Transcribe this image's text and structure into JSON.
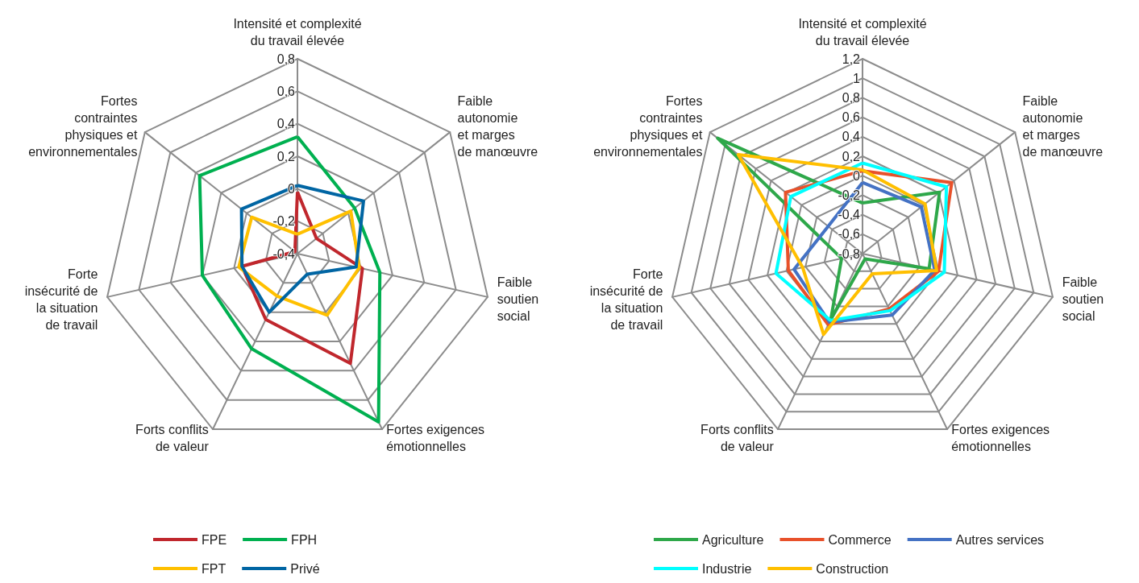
{
  "chart_data": [
    {
      "type": "radar",
      "categories": [
        "Intensité et complexité\ndu travail élevée",
        "Faible\nautonomie\net marges\nde manœuvre",
        "Faible\nsoutien\nsocial",
        "Fortes exigences\némotionnelles",
        "Forts conflits\nde valeur",
        "Forte\ninsécurité de\nla situation\nde travail",
        "Fortes\ncontraintes\nphysiques et\nenvironnementales"
      ],
      "series": [
        {
          "name": "FPE",
          "color": "#c0272d",
          "values": [
            -0.02,
            -0.25,
            0.01,
            0.35,
            0.05,
            -0.05,
            -0.38
          ]
        },
        {
          "name": "FPH",
          "color": "#00b050",
          "values": [
            0.32,
            0.05,
            0.12,
            0.75,
            0.25,
            0.2,
            0.37
          ]
        },
        {
          "name": "FPT",
          "color": "#ffc000",
          "values": [
            -0.28,
            0.02,
            -0.01,
            0.02,
            -0.11,
            -0.03,
            -0.04
          ]
        },
        {
          "name": "Privé",
          "color": "#0065a3",
          "values": [
            0.02,
            0.12,
            -0.03,
            -0.26,
            0.0,
            -0.05,
            0.04
          ]
        }
      ],
      "ylim": [
        -0.4,
        0.8
      ],
      "yticks": [
        {
          "value": -0.4,
          "label": "-0,4"
        },
        {
          "value": -0.2,
          "label": "-0,2"
        },
        {
          "value": 0,
          "label": "0"
        },
        {
          "value": 0.2,
          "label": "0,2"
        },
        {
          "value": 0.4,
          "label": "0,4"
        },
        {
          "value": 0.6,
          "label": "0,6"
        },
        {
          "value": 0.8,
          "label": "0,8"
        }
      ],
      "grid": true,
      "legend": "bottom"
    },
    {
      "type": "radar",
      "categories": [
        "Intensité et complexité\ndu travail élevée",
        "Faible\nautonomie\net marges\nde manœuvre",
        "Faible\nsoutien\nsocial",
        "Fortes exigences\némotionnelles",
        "Forts conflits\nde valeur",
        "Forte\ninsécurité de\nla situation\nde travail",
        "Fortes\ncontraintes\nphysiques et\nenvironnementales"
      ],
      "series": [
        {
          "name": "Agriculture",
          "color": "#2ea84a",
          "values": [
            -0.28,
            0.21,
            -0.1,
            -0.74,
            -0.05,
            -0.58,
            1.1
          ]
        },
        {
          "name": "Commerce",
          "color": "#e8512a",
          "values": [
            0.05,
            0.37,
            0.0,
            -0.17,
            0.01,
            -0.02,
            0.21
          ]
        },
        {
          "name": "Autres services",
          "color": "#4472c4",
          "values": [
            -0.07,
            -0.03,
            -0.04,
            -0.1,
            -0.02,
            -0.08,
            -0.35
          ]
        },
        {
          "name": "Industrie",
          "color": "#00ffff",
          "values": [
            0.13,
            0.3,
            0.06,
            -0.15,
            -0.04,
            0.11,
            0.14
          ]
        },
        {
          "name": "Construction",
          "color": "#ffbf00",
          "values": [
            0.06,
            0.02,
            -0.02,
            -0.57,
            0.12,
            -0.17,
            0.83
          ]
        }
      ],
      "ylim": [
        -0.8,
        1.2
      ],
      "yticks": [
        {
          "value": -0.8,
          "label": "-0,8"
        },
        {
          "value": -0.6,
          "label": "-0,6"
        },
        {
          "value": -0.4,
          "label": "-0,4"
        },
        {
          "value": -0.2,
          "label": "-0,2"
        },
        {
          "value": 0,
          "label": "0"
        },
        {
          "value": 0.2,
          "label": "0,2"
        },
        {
          "value": 0.4,
          "label": "0,4"
        },
        {
          "value": 0.6,
          "label": "0,6"
        },
        {
          "value": 0.8,
          "label": "0,8"
        },
        {
          "value": 1,
          "label": "1"
        },
        {
          "value": 1.2,
          "label": "1,2"
        }
      ],
      "grid": true,
      "legend": "bottom"
    }
  ]
}
